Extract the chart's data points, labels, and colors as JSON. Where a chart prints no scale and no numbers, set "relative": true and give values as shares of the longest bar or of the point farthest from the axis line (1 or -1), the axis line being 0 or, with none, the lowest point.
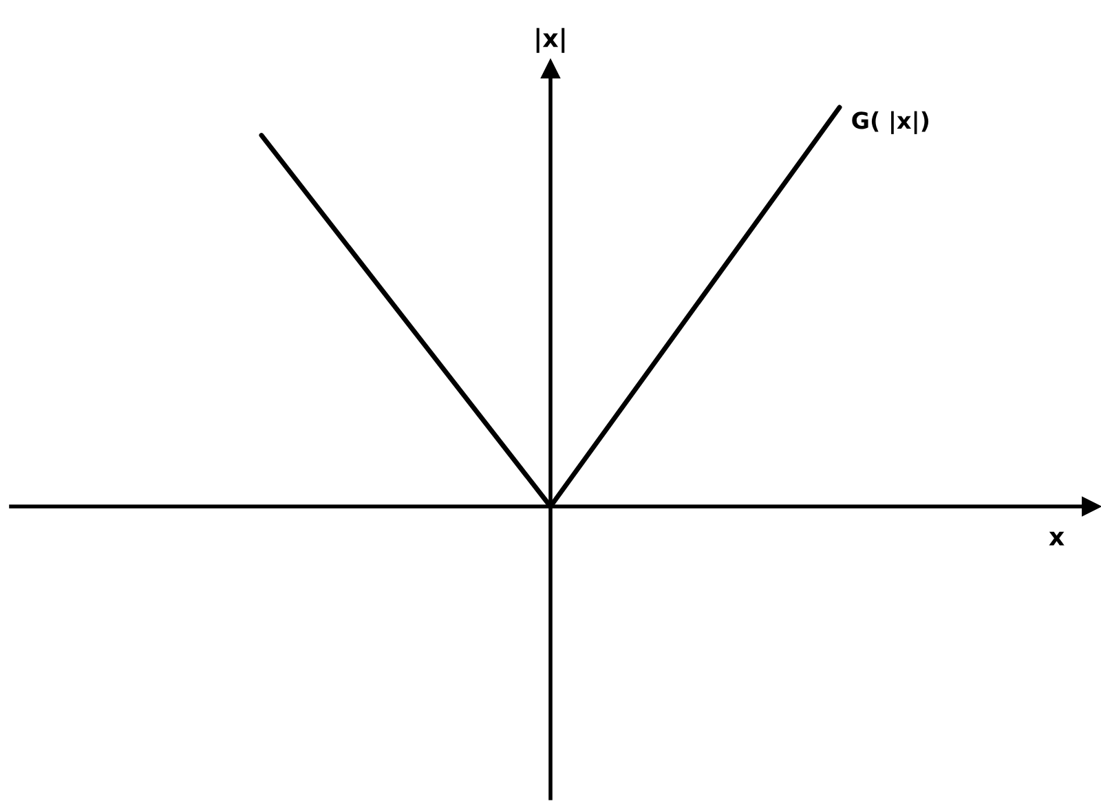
{
  "chart_data": {
    "type": "line",
    "relative": true,
    "xlabel": "x",
    "ylabel": "|x|",
    "categories": [
      null,
      null,
      null
    ],
    "series": [
      {
        "name": "G( |x|)",
        "color": "#000000",
        "values": [
          0.93,
          0,
          1
        ]
      }
    ],
    "marker": "none",
    "line_style": "solid",
    "legend": false
  }
}
